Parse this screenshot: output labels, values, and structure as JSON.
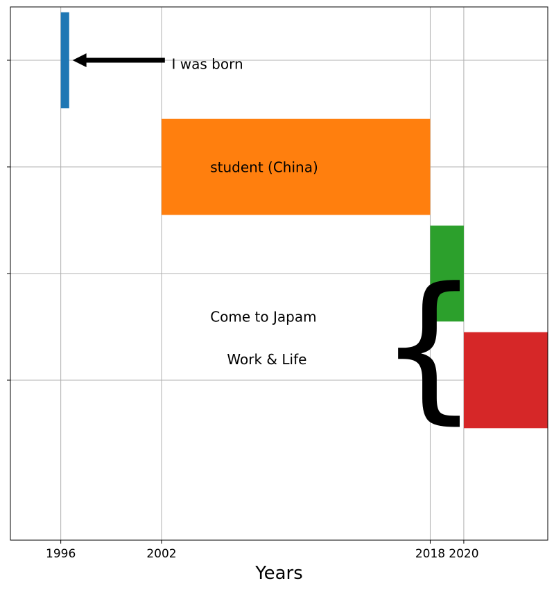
{
  "chart_data": {
    "type": "bar",
    "orientation": "horizontal",
    "xlabel": "Years",
    "x_ticks": [
      1996,
      2002,
      2018,
      2020
    ],
    "xlim": [
      1993,
      2025
    ],
    "ylim": [
      -0.5,
      4.5
    ],
    "grid": true,
    "y_rows": [
      1,
      2,
      3,
      4
    ],
    "bars": [
      {
        "start": 1996,
        "end": 1996.5,
        "row": 4,
        "color": "#1f77b4"
      },
      {
        "start": 2002,
        "end": 2018,
        "row": 3,
        "color": "#ff7f0e"
      },
      {
        "start": 2018,
        "end": 2020,
        "row": 2,
        "color": "#2ca02c"
      },
      {
        "start": 2020,
        "end": 2025,
        "row": 1,
        "color": "#d62728"
      }
    ],
    "annotations": [
      {
        "text": "I was born",
        "x": 2002.6,
        "y": 3.92
      },
      {
        "text": "student (China)",
        "x": 2004.9,
        "y": 2.95
      },
      {
        "text": "Come to Japam",
        "x": 2004.9,
        "y": 1.55
      },
      {
        "text": "Work & Life",
        "x": 2005.9,
        "y": 1.15
      }
    ],
    "arrow": {
      "from": [
        2002.2,
        4.0
      ],
      "to": [
        1996.7,
        4.0
      ]
    },
    "brace": {
      "text": "{",
      "x": 2014.9,
      "y": 1.0
    }
  }
}
